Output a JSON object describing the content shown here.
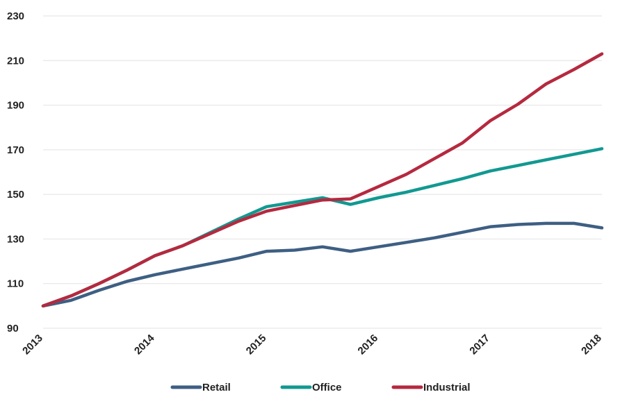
{
  "chart_data": {
    "type": "line",
    "title": "",
    "xlabel": "",
    "ylabel": "",
    "xlim": [
      2013,
      2018
    ],
    "ylim": [
      90,
      230
    ],
    "yticks": [
      90,
      110,
      130,
      150,
      170,
      190,
      210,
      230
    ],
    "xticks": [
      2013,
      2014,
      2015,
      2016,
      2017,
      2018
    ],
    "ytick_labels": [
      "90",
      "110",
      "130",
      "150",
      "170",
      "190",
      "210",
      "230"
    ],
    "xtick_labels": [
      "2013",
      "2014",
      "2015",
      "2016",
      "2017",
      "2018"
    ],
    "grid": true,
    "legend_position": "bottom",
    "x": [
      2013,
      2013.25,
      2013.5,
      2013.75,
      2014,
      2014.25,
      2014.5,
      2014.75,
      2015,
      2015.25,
      2015.5,
      2015.75,
      2016,
      2016.25,
      2016.5,
      2016.75,
      2017,
      2017.25,
      2017.5,
      2017.75,
      2018
    ],
    "series": [
      {
        "name": "Retail",
        "color": "#3e5f83",
        "values": [
          100,
          102.5,
          107,
          111,
          114,
          116.5,
          119,
          121.5,
          124.5,
          125,
          126.5,
          124.5,
          126.5,
          128.5,
          130.5,
          133,
          135.5,
          136.5,
          137,
          137,
          135
        ]
      },
      {
        "name": "Office",
        "color": "#119991",
        "values": [
          100,
          104.5,
          110,
          116,
          122.5,
          127,
          133,
          139,
          144.5,
          146.5,
          148.5,
          145.5,
          148.5,
          151,
          154,
          157,
          160.5,
          163,
          165.5,
          168,
          170.5
        ]
      },
      {
        "name": "Industrial",
        "color": "#b5293f",
        "values": [
          100,
          104.5,
          110,
          116,
          122.5,
          127,
          132.5,
          138,
          142.5,
          145,
          147.5,
          148,
          153.5,
          159,
          166,
          173,
          183,
          190.5,
          199.5,
          206,
          213
        ]
      }
    ]
  }
}
